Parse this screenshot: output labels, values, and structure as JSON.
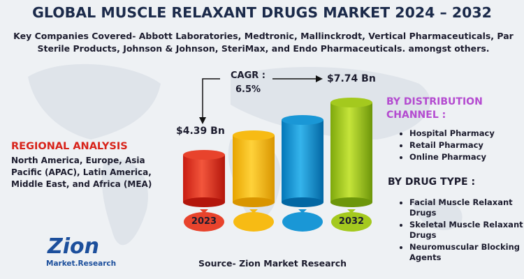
{
  "header": {
    "title": "GLOBAL MUSCLE RELAXANT DRUGS MARKET 2024 – 2032",
    "subtitle": "Key Companies Covered- Abbott Laboratories, Medtronic, Mallinckrodt, Vertical Pharmaceuticals, Par Sterile Products, Johnson & Johnson, SteriMax, and Endo Pharmaceuticals. amongst others."
  },
  "growth": {
    "cagr_label": "CAGR :",
    "cagr_value": "6.5%",
    "start_value": "$4.39 Bn",
    "end_value": "$7.74 Bn",
    "start_year": "2023",
    "end_year": "2032"
  },
  "regional": {
    "heading": "REGIONAL ANALYSIS",
    "text": "North America, Europe, Asia Pacific (APAC), Latin America, Middle East, and Africa (MEA)"
  },
  "distribution": {
    "heading": "BY DISTRIBUTION CHANNEL :",
    "items": [
      "Hospital Pharmacy",
      "Retail Pharmacy",
      "Online Pharmacy"
    ]
  },
  "drug_type": {
    "heading": "BY DRUG TYPE :",
    "items": [
      "Facial Muscle Relaxant Drugs",
      "Skeletal Muscle Relaxant Drugs",
      "Neuromuscular Blocking Agents"
    ]
  },
  "logo": {
    "name": "Zion",
    "tagline": "Market.Research"
  },
  "source": "Source- Zion Market Research"
}
